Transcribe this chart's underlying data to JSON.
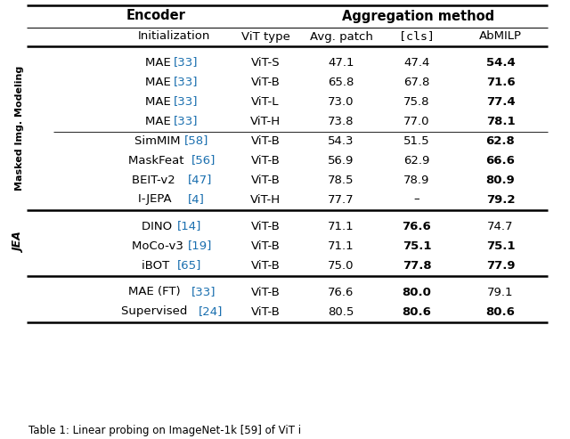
{
  "title_encoder": "Encoder",
  "title_aggregation": "Aggregation method",
  "col_headers_normal": [
    "Initialization",
    "ViT type",
    "Avg. patch",
    "AbMILP"
  ],
  "col_header_mono": "[cls]",
  "sections": [
    {
      "label": "Masked Img. Modeling",
      "label_bold": true,
      "rows": [
        {
          "init": "MAE ",
          "ref": "[33]",
          "vit": "ViT-S",
          "avg": "47.1",
          "cls": "47.4",
          "abmilp": "54.4",
          "bold": [
            false,
            false,
            true
          ]
        },
        {
          "init": "MAE ",
          "ref": "[33]",
          "vit": "ViT-B",
          "avg": "65.8",
          "cls": "67.8",
          "abmilp": "71.6",
          "bold": [
            false,
            false,
            true
          ]
        },
        {
          "init": "MAE ",
          "ref": "[33]",
          "vit": "ViT-L",
          "avg": "73.0",
          "cls": "75.8",
          "abmilp": "77.4",
          "bold": [
            false,
            false,
            true
          ]
        },
        {
          "init": "MAE ",
          "ref": "[33]",
          "vit": "ViT-H",
          "avg": "73.8",
          "cls": "77.0",
          "abmilp": "78.1",
          "bold": [
            false,
            false,
            true
          ]
        }
      ],
      "sub_rows": [
        {
          "init": "SimMIM ",
          "ref": "[58]",
          "vit": "ViT-B",
          "avg": "54.3",
          "cls": "51.5",
          "abmilp": "62.8",
          "bold": [
            false,
            false,
            true
          ]
        },
        {
          "init": "MaskFeat ",
          "ref": "[56]",
          "vit": "ViT-B",
          "avg": "56.9",
          "cls": "62.9",
          "abmilp": "66.6",
          "bold": [
            false,
            false,
            true
          ]
        },
        {
          "init": "BEIT-v2 ",
          "ref": "[47]",
          "vit": "ViT-B",
          "avg": "78.5",
          "cls": "78.9",
          "abmilp": "80.9",
          "bold": [
            false,
            false,
            true
          ]
        },
        {
          "init": "I-JEPA ",
          "ref": "[4]",
          "vit": "ViT-H",
          "avg": "77.7",
          "cls": "–",
          "abmilp": "79.2",
          "bold": [
            false,
            false,
            true
          ]
        }
      ]
    },
    {
      "label": "JEA",
      "label_bold": true,
      "rows": [
        {
          "init": "DINO ",
          "ref": "[14]",
          "vit": "ViT-B",
          "avg": "71.1",
          "cls": "76.6",
          "abmilp": "74.7",
          "bold": [
            false,
            true,
            false
          ]
        },
        {
          "init": "MoCo-v3 ",
          "ref": "[19]",
          "vit": "ViT-B",
          "avg": "71.1",
          "cls": "75.1",
          "abmilp": "75.1",
          "bold": [
            false,
            true,
            true
          ]
        },
        {
          "init": "iBOT ",
          "ref": "[65]",
          "vit": "ViT-B",
          "avg": "75.0",
          "cls": "77.8",
          "abmilp": "77.9",
          "bold": [
            false,
            true,
            true
          ]
        }
      ]
    }
  ],
  "bottom_rows": [
    {
      "init": "MAE (FT) ",
      "ref": "[33]",
      "vit": "ViT-B",
      "avg": "76.6",
      "cls": "80.0",
      "abmilp": "79.1",
      "bold": [
        false,
        true,
        false
      ]
    },
    {
      "init": "Supervised ",
      "ref": "[24]",
      "vit": "ViT-B",
      "avg": "80.5",
      "cls": "80.6",
      "abmilp": "80.6",
      "bold": [
        false,
        true,
        true
      ]
    }
  ],
  "caption": "Table 1: Linear probing on ImageNet-1k [59] of ViT i",
  "ref_color": "#1a6faf",
  "bg_color": "#ffffff"
}
